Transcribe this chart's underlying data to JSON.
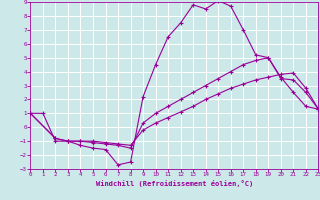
{
  "xlabel": "Windchill (Refroidissement éolien,°C)",
  "xlim": [
    0,
    23
  ],
  "ylim": [
    -3,
    9
  ],
  "xticks": [
    0,
    1,
    2,
    3,
    4,
    5,
    6,
    7,
    8,
    9,
    10,
    11,
    12,
    13,
    14,
    15,
    16,
    17,
    18,
    19,
    20,
    21,
    22,
    23
  ],
  "yticks": [
    -3,
    -2,
    -1,
    0,
    1,
    2,
    3,
    4,
    5,
    6,
    7,
    8,
    9
  ],
  "bg_color": "#cde8e8",
  "line_color": "#990099",
  "grid_color": "#aacccc",
  "line1_x": [
    0,
    1,
    2,
    3,
    4,
    5,
    6,
    7,
    8,
    9,
    10,
    11,
    12,
    13,
    14,
    15,
    16,
    17,
    18,
    19,
    20,
    21,
    22,
    23
  ],
  "line1_y": [
    1,
    1,
    -1,
    -1,
    -1.3,
    -1.5,
    -1.6,
    -2.7,
    -2.5,
    2.2,
    4.5,
    6.5,
    7.5,
    8.8,
    8.5,
    9.1,
    8.7,
    7.0,
    5.2,
    5.0,
    3.6,
    2.5,
    1.5,
    1.3
  ],
  "line2_x": [
    0,
    2,
    3,
    4,
    5,
    6,
    7,
    8,
    9,
    10,
    11,
    12,
    13,
    14,
    15,
    16,
    17,
    18,
    19,
    20,
    21,
    22,
    23
  ],
  "line2_y": [
    1,
    -0.8,
    -1,
    -1,
    -1.1,
    -1.2,
    -1.3,
    -1.5,
    0.3,
    1.0,
    1.5,
    2.0,
    2.5,
    3.0,
    3.5,
    4.0,
    4.5,
    4.8,
    5.0,
    3.5,
    3.4,
    2.5,
    1.3
  ],
  "line3_x": [
    0,
    2,
    3,
    4,
    5,
    6,
    7,
    8,
    9,
    10,
    11,
    12,
    13,
    14,
    15,
    16,
    17,
    18,
    19,
    20,
    21,
    22,
    23
  ],
  "line3_y": [
    1,
    -0.8,
    -1,
    -1,
    -1.0,
    -1.1,
    -1.2,
    -1.3,
    -0.2,
    0.3,
    0.7,
    1.1,
    1.5,
    2.0,
    2.4,
    2.8,
    3.1,
    3.4,
    3.6,
    3.8,
    3.9,
    2.8,
    1.3
  ]
}
